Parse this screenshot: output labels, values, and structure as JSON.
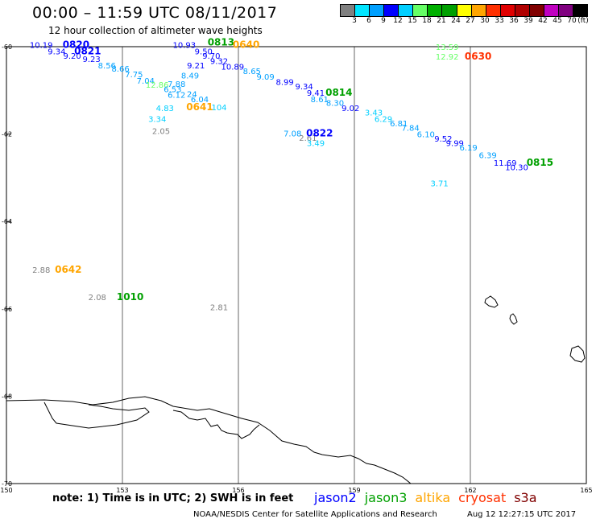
{
  "header": {
    "title": "00:00 – 11:59 UTC 08/11/2017",
    "subtitle": "12 hour collection of altimeter wave heights"
  },
  "color_scale": {
    "unit": "(ft)",
    "colors": [
      "#808080",
      "#00e5ff",
      "#00a0ff",
      "#0000ff",
      "#00cfff",
      "#66ff66",
      "#00b000",
      "#00a000",
      "#ffff00",
      "#ffa500",
      "#ff3000",
      "#e00000",
      "#b00000",
      "#800000",
      "#c000c0",
      "#800080",
      "#000000"
    ],
    "ticks": [
      "3",
      "6",
      "9",
      "12",
      "15",
      "18",
      "21",
      "24",
      "27",
      "30",
      "33",
      "36",
      "39",
      "42",
      "45",
      "70"
    ]
  },
  "axes": {
    "lat_labels": [
      "-60",
      "-62",
      "-64",
      "-66",
      "-68",
      "-70"
    ],
    "lon_labels": [
      "150",
      "153",
      "156",
      "159",
      "162",
      "165"
    ]
  },
  "observations": [
    {
      "text": "10.19",
      "color": "#0000ff",
      "lon": 150.9,
      "lat": -59.95
    },
    {
      "text": "0820",
      "color": "#0000ff",
      "lon": 151.8,
      "lat": -59.95,
      "bold": true
    },
    {
      "text": "9.34",
      "color": "#0000ff",
      "lon": 151.3,
      "lat": -60.1
    },
    {
      "text": "9.20",
      "color": "#0000ff",
      "lon": 151.7,
      "lat": -60.2
    },
    {
      "text": "0821",
      "color": "#0000ff",
      "lon": 152.1,
      "lat": -60.1,
      "bold": true
    },
    {
      "text": "9.23",
      "color": "#0000ff",
      "lon": 152.2,
      "lat": -60.28
    },
    {
      "text": "8.56",
      "color": "#00a0ff",
      "lon": 152.6,
      "lat": -60.42
    },
    {
      "text": "8.66",
      "color": "#00a0ff",
      "lon": 152.95,
      "lat": -60.5
    },
    {
      "text": "7.75",
      "color": "#00a0ff",
      "lon": 153.3,
      "lat": -60.63
    },
    {
      "text": "7.04",
      "color": "#00a0ff",
      "lon": 153.6,
      "lat": -60.77
    },
    {
      "text": "12.86",
      "color": "#66ff66",
      "lon": 153.9,
      "lat": -60.87
    },
    {
      "text": "7.88",
      "color": "#00a0ff",
      "lon": 154.4,
      "lat": -60.85
    },
    {
      "text": "8.49",
      "color": "#00a0ff",
      "lon": 154.75,
      "lat": -60.65
    },
    {
      "text": "6.53",
      "color": "#00a0ff",
      "lon": 154.3,
      "lat": -60.97
    },
    {
      "text": "6.12",
      "color": "#00a0ff",
      "lon": 154.4,
      "lat": -61.1
    },
    {
      "text": "24",
      "color": "#00a0ff",
      "lon": 154.8,
      "lat": -61.08
    },
    {
      "text": "6.04",
      "color": "#00a0ff",
      "lon": 155.0,
      "lat": -61.2
    },
    {
      "text": "4.83",
      "color": "#00cfff",
      "lon": 154.1,
      "lat": -61.4
    },
    {
      "text": "0641",
      "color": "#ffa500",
      "lon": 155.0,
      "lat": -61.38,
      "bold": true
    },
    {
      "text": "104",
      "color": "#00cfff",
      "lon": 155.5,
      "lat": -61.38
    },
    {
      "text": "3.34",
      "color": "#00cfff",
      "lon": 153.9,
      "lat": -61.65
    },
    {
      "text": "2.05",
      "color": "#808080",
      "lon": 154.0,
      "lat": -61.92
    },
    {
      "text": "10.93",
      "color": "#0000ff",
      "lon": 154.6,
      "lat": -59.95
    },
    {
      "text": "0813",
      "color": "#00a000",
      "lon": 155.55,
      "lat": -59.9,
      "bold": true
    },
    {
      "text": "0640",
      "color": "#ffa500",
      "lon": 156.2,
      "lat": -59.95,
      "bold": true
    },
    {
      "text": "9.50",
      "color": "#0000ff",
      "lon": 155.1,
      "lat": -60.1
    },
    {
      "text": "9.70",
      "color": "#0000ff",
      "lon": 155.3,
      "lat": -60.2
    },
    {
      "text": "9.21",
      "color": "#0000ff",
      "lon": 154.9,
      "lat": -60.42
    },
    {
      "text": "9.32",
      "color": "#0000ff",
      "lon": 155.5,
      "lat": -60.32
    },
    {
      "text": "10.89",
      "color": "#0000ff",
      "lon": 155.85,
      "lat": -60.45
    },
    {
      "text": "8.65",
      "color": "#00a0ff",
      "lon": 156.35,
      "lat": -60.55
    },
    {
      "text": "9.09",
      "color": "#00a0ff",
      "lon": 156.7,
      "lat": -60.68
    },
    {
      "text": "8.99",
      "color": "#0000ff",
      "lon": 157.2,
      "lat": -60.8
    },
    {
      "text": "9.34",
      "color": "#0000ff",
      "lon": 157.7,
      "lat": -60.9
    },
    {
      "text": "9.41",
      "color": "#0000ff",
      "lon": 158.0,
      "lat": -61.05
    },
    {
      "text": "0814",
      "color": "#00a000",
      "lon": 158.6,
      "lat": -61.05,
      "bold": true
    },
    {
      "text": "8.61",
      "color": "#00a0ff",
      "lon": 158.1,
      "lat": -61.2
    },
    {
      "text": "8.30",
      "color": "#00a0ff",
      "lon": 158.5,
      "lat": -61.28
    },
    {
      "text": "9.02",
      "color": "#0000ff",
      "lon": 158.9,
      "lat": -61.4
    },
    {
      "text": "3.43",
      "color": "#00cfff",
      "lon": 159.5,
      "lat": -61.5
    },
    {
      "text": "6.29",
      "color": "#00cfff",
      "lon": 159.75,
      "lat": -61.65
    },
    {
      "text": "6.81",
      "color": "#00a0ff",
      "lon": 160.15,
      "lat": -61.75
    },
    {
      "text": "7.84",
      "color": "#00a0ff",
      "lon": 160.45,
      "lat": -61.85
    },
    {
      "text": "6.10",
      "color": "#00a0ff",
      "lon": 160.85,
      "lat": -62.0
    },
    {
      "text": "9.52",
      "color": "#0000ff",
      "lon": 161.3,
      "lat": -62.1
    },
    {
      "text": "9.99",
      "color": "#0000ff",
      "lon": 161.6,
      "lat": -62.2
    },
    {
      "text": "6.19",
      "color": "#00a0ff",
      "lon": 161.95,
      "lat": -62.3
    },
    {
      "text": "6.39",
      "color": "#00a0ff",
      "lon": 162.45,
      "lat": -62.48
    },
    {
      "text": "11.69",
      "color": "#0000ff",
      "lon": 162.9,
      "lat": -62.65
    },
    {
      "text": "10.30",
      "color": "#0000ff",
      "lon": 163.2,
      "lat": -62.75
    },
    {
      "text": "0815",
      "color": "#00a000",
      "lon": 163.8,
      "lat": -62.65,
      "bold": true
    },
    {
      "text": "3.71",
      "color": "#00cfff",
      "lon": 161.2,
      "lat": -63.12
    },
    {
      "text": "7.08",
      "color": "#00a0ff",
      "lon": 157.4,
      "lat": -61.98
    },
    {
      "text": "2.61",
      "color": "#808080",
      "lon": 157.8,
      "lat": -62.08
    },
    {
      "text": "0822",
      "color": "#0000ff",
      "lon": 158.1,
      "lat": -61.98,
      "bold": true
    },
    {
      "text": "3.49",
      "color": "#00cfff",
      "lon": 158.0,
      "lat": -62.2
    },
    {
      "text": "13.59",
      "color": "#66ff66",
      "lon": 161.4,
      "lat": -60.0
    },
    {
      "text": "12.92",
      "color": "#66ff66",
      "lon": 161.4,
      "lat": -60.22
    },
    {
      "text": "0630",
      "color": "#ff3000",
      "lon": 162.2,
      "lat": -60.22,
      "bold": true
    },
    {
      "text": "2.88",
      "color": "#808080",
      "lon": 150.9,
      "lat": -65.1
    },
    {
      "text": "0642",
      "color": "#ffa500",
      "lon": 151.6,
      "lat": -65.1,
      "bold": true
    },
    {
      "text": "2.08",
      "color": "#808080",
      "lon": 152.35,
      "lat": -65.73
    },
    {
      "text": "1010",
      "color": "#00a000",
      "lon": 153.2,
      "lat": -65.73,
      "bold": true
    },
    {
      "text": "2.81",
      "color": "#808080",
      "lon": 155.5,
      "lat": -65.96
    }
  ],
  "footer": {
    "note": "note:  1) Time is in UTC;  2) SWH is in feet",
    "satellites": [
      {
        "name": "jason2",
        "color": "#0000ff"
      },
      {
        "name": "jason3",
        "color": "#00a000"
      },
      {
        "name": "altika",
        "color": "#ffa500"
      },
      {
        "name": "cryosat",
        "color": "#ff3000"
      },
      {
        "name": "s3a",
        "color": "#800000"
      }
    ],
    "credit": "NOAA/NESDIS Center for Satellite Applications and Research",
    "stamp": "Aug 12 12:27:15 UTC 2017"
  }
}
